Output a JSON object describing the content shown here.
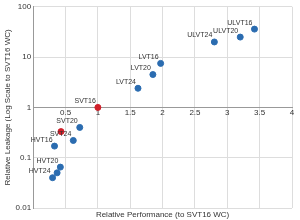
{
  "chart_data": {
    "type": "scatter",
    "x_label": "Relative Performance (to SVT16 WC)",
    "y_label": "Relative Leakage (Log Scale to SVT16 WC)",
    "x": [
      0.3,
      0.37,
      0.42,
      0.33,
      0.43,
      0.62,
      0.72,
      1,
      1.62,
      1.85,
      1.97,
      2.8,
      3.2,
      3.42
    ],
    "values": [
      0.04,
      0.05,
      0.065,
      0.17,
      0.33,
      0.22,
      0.4,
      1,
      2.4,
      4.5,
      7.5,
      20,
      25,
      36
    ],
    "labels": [
      "HVT24",
      null,
      "HVT20",
      "HVT16",
      null,
      "SVT24",
      "SVT20",
      "SVT16",
      "LVT24",
      "LVT20",
      "LVT16",
      "ULVT24",
      "ULVT20",
      "ULVT16"
    ],
    "colors": [
      "#2b6cb0",
      "#2b6cb0",
      "#2b6cb0",
      "#2b6cb0",
      "#d0202a",
      "#2b6cb0",
      "#2b6cb0",
      "#d0202a",
      "#2b6cb0",
      "#2b6cb0",
      "#2b6cb0",
      "#2b6cb0",
      "#2b6cb0",
      "#2b6cb0"
    ],
    "xlim": [
      0,
      4
    ],
    "xticks": [
      0.5,
      1,
      1.5,
      2,
      2.5,
      3,
      3.5,
      4
    ],
    "ylim": [
      0.01,
      100
    ],
    "yticks": [
      0.01,
      0.1,
      1,
      10,
      100
    ],
    "log": "y",
    "grid": true,
    "marker": "circle"
  }
}
